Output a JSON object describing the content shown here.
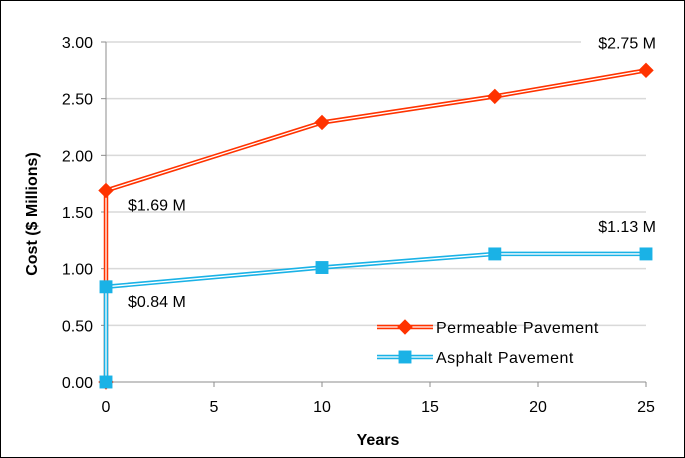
{
  "chart_data": {
    "type": "line",
    "title": "",
    "xlabel": "Years",
    "ylabel": "Cost ($ Millions)",
    "xlim": [
      0,
      25
    ],
    "ylim": [
      0,
      3
    ],
    "x_ticks": [
      "0",
      "5",
      "10",
      "15",
      "20",
      "25"
    ],
    "y_ticks": [
      "0.00",
      "0.50",
      "1.00",
      "1.50",
      "2.00",
      "2.50",
      "3.00"
    ],
    "grid": "horizontal",
    "legend_position": "bottom-right",
    "series": [
      {
        "name": "Permeable Pavement",
        "color": "#ff3300",
        "marker": "diamond",
        "points": [
          [
            0,
            0
          ],
          [
            0,
            1.69
          ],
          [
            10,
            2.29
          ],
          [
            18,
            2.52
          ],
          [
            25,
            2.75
          ]
        ]
      },
      {
        "name": "Asphalt Pavement",
        "color": "#1ab2e6",
        "marker": "square",
        "points": [
          [
            0,
            0
          ],
          [
            0,
            0.84
          ],
          [
            10,
            1.01
          ],
          [
            18,
            1.13
          ],
          [
            25,
            1.13
          ]
        ]
      }
    ],
    "annotations": [
      {
        "text": "$2.75 M",
        "x": 25,
        "y": 2.75
      },
      {
        "text": "$1.69 M",
        "x": 0,
        "y": 1.69
      },
      {
        "text": "$1.13 M",
        "x": 25,
        "y": 1.13
      },
      {
        "text": "$0.84 M",
        "x": 0,
        "y": 0.84
      }
    ]
  }
}
